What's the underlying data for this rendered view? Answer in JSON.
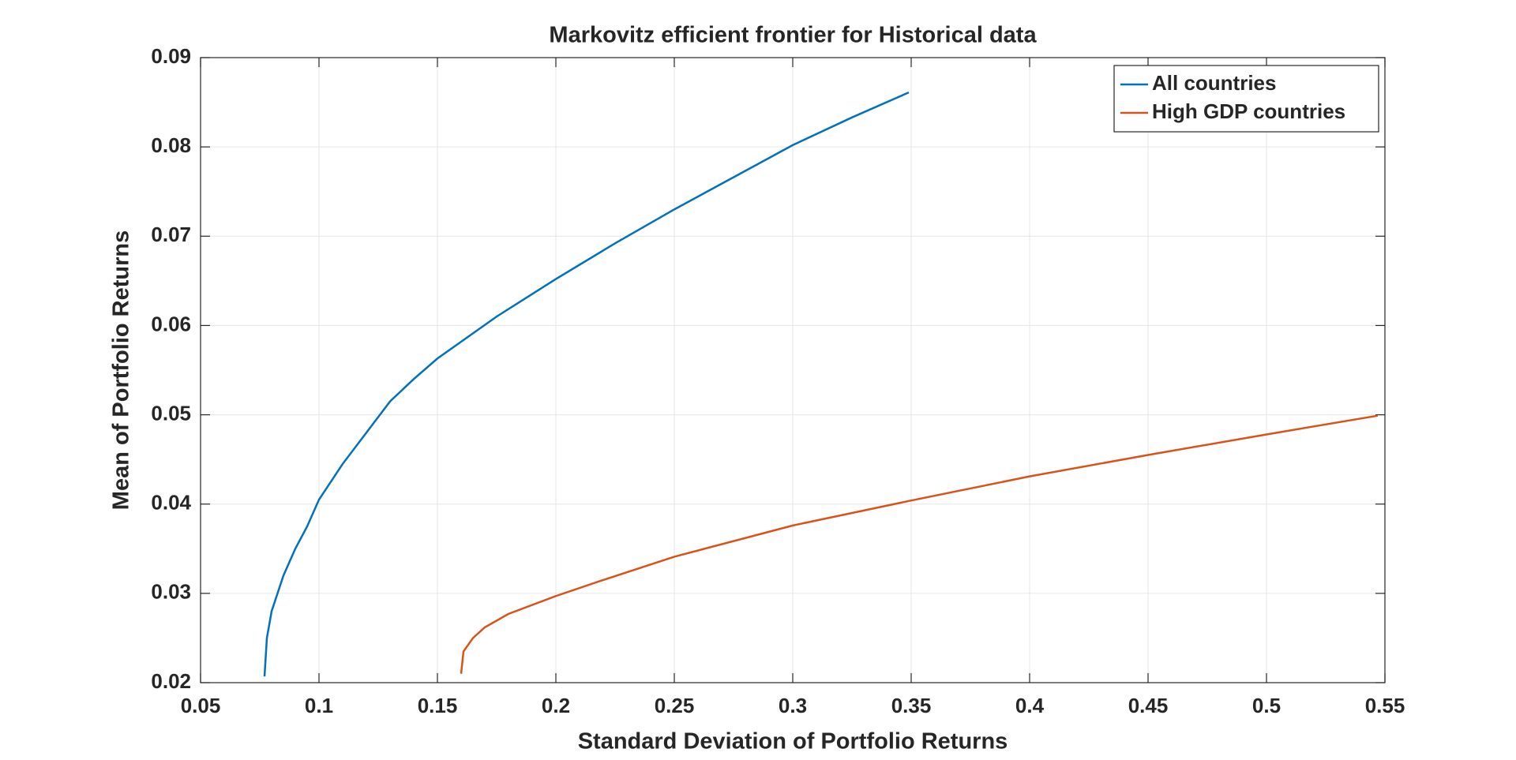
{
  "chart_data": {
    "type": "line",
    "title": "Markovitz efficient frontier for Historical data",
    "xlabel": "Standard Deviation of Portfolio Returns",
    "ylabel": "Mean of Portfolio Returns",
    "xlim": [
      0.05,
      0.55
    ],
    "ylim": [
      0.02,
      0.09
    ],
    "xticks": [
      0.05,
      0.1,
      0.15,
      0.2,
      0.25,
      0.3,
      0.35,
      0.4,
      0.45,
      0.5,
      0.55
    ],
    "yticks": [
      0.02,
      0.03,
      0.04,
      0.05,
      0.06,
      0.07,
      0.08,
      0.09
    ],
    "grid": true,
    "legend": "northeast",
    "series": [
      {
        "name": "All countries",
        "color": "#0072bd",
        "x": [
          0.077,
          0.078,
          0.08,
          0.085,
          0.09,
          0.095,
          0.1,
          0.11,
          0.12,
          0.13,
          0.14,
          0.15,
          0.175,
          0.2,
          0.225,
          0.25,
          0.275,
          0.3,
          0.325,
          0.349
        ],
        "values": [
          0.0207,
          0.025,
          0.028,
          0.032,
          0.035,
          0.0375,
          0.0405,
          0.0445,
          0.048,
          0.0515,
          0.054,
          0.0563,
          0.061,
          0.0652,
          0.0692,
          0.073,
          0.0766,
          0.0802,
          0.0833,
          0.0861
        ]
      },
      {
        "name": "High GDP countries",
        "color": "#d95319",
        "x": [
          0.16,
          0.161,
          0.165,
          0.17,
          0.18,
          0.2,
          0.22,
          0.25,
          0.3,
          0.35,
          0.4,
          0.45,
          0.5,
          0.547
        ],
        "values": [
          0.021,
          0.0235,
          0.025,
          0.0262,
          0.0277,
          0.0297,
          0.0315,
          0.0341,
          0.0376,
          0.0404,
          0.0431,
          0.0455,
          0.0478,
          0.0499
        ]
      }
    ]
  }
}
